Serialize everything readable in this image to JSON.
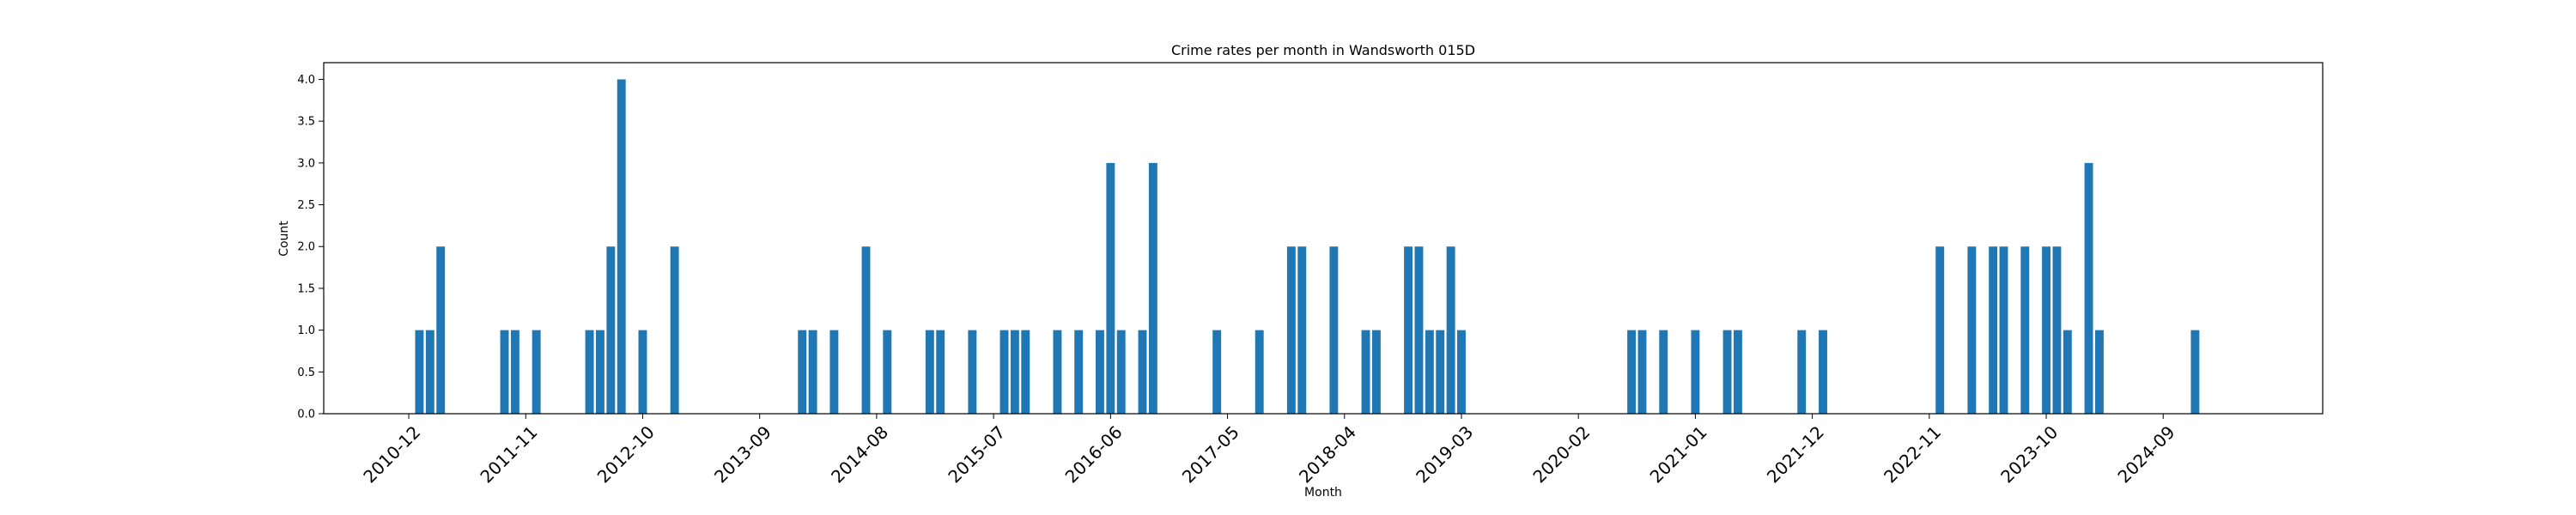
{
  "chart_data": {
    "type": "bar",
    "title": "Crime rates per month in Wandsworth 015D",
    "xlabel": "Month",
    "ylabel": "Count",
    "ylim": [
      0,
      4.2
    ],
    "yticks": [
      "0.0",
      "0.5",
      "1.0",
      "1.5",
      "2.0",
      "2.5",
      "3.0",
      "3.5",
      "4.0"
    ],
    "xticks": [
      "2010-12",
      "2011-11",
      "2012-10",
      "2013-09",
      "2014-08",
      "2015-07",
      "2016-06",
      "2017-05",
      "2018-04",
      "2019-03",
      "2020-02",
      "2021-01",
      "2021-12",
      "2022-11",
      "2023-10",
      "2024-09"
    ],
    "xrange": [
      "2010-04",
      "2025-12"
    ],
    "grid": false,
    "bar_color": "#1f77b4",
    "categories": [
      "2011-01",
      "2011-02",
      "2011-03",
      "2011-09",
      "2011-10",
      "2011-12",
      "2012-05",
      "2012-06",
      "2012-07",
      "2012-08",
      "2012-10",
      "2013-01",
      "2014-01",
      "2014-02",
      "2014-04",
      "2014-07",
      "2014-09",
      "2015-01",
      "2015-02",
      "2015-05",
      "2015-08",
      "2015-09",
      "2015-10",
      "2016-01",
      "2016-03",
      "2016-05",
      "2016-06",
      "2016-07",
      "2016-09",
      "2016-10",
      "2017-04",
      "2017-08",
      "2017-11",
      "2017-12",
      "2018-03",
      "2018-06",
      "2018-07",
      "2018-10",
      "2018-11",
      "2018-12",
      "2019-01",
      "2019-02",
      "2019-03",
      "2020-07",
      "2020-08",
      "2020-10",
      "2021-01",
      "2021-04",
      "2021-05",
      "2021-11",
      "2022-01",
      "2022-12",
      "2023-03",
      "2023-05",
      "2023-06",
      "2023-08",
      "2023-10",
      "2023-11",
      "2023-12",
      "2024-02",
      "2024-03",
      "2024-12"
    ],
    "values": [
      1,
      1,
      2,
      1,
      1,
      1,
      1,
      1,
      2,
      4,
      1,
      2,
      1,
      1,
      1,
      2,
      1,
      1,
      1,
      1,
      1,
      1,
      1,
      1,
      1,
      1,
      3,
      1,
      1,
      3,
      1,
      1,
      2,
      2,
      2,
      1,
      1,
      2,
      2,
      1,
      1,
      2,
      1,
      1,
      1,
      1,
      1,
      1,
      1,
      1,
      1,
      2,
      2,
      2,
      2,
      2,
      2,
      2,
      1,
      3,
      1,
      1
    ]
  }
}
